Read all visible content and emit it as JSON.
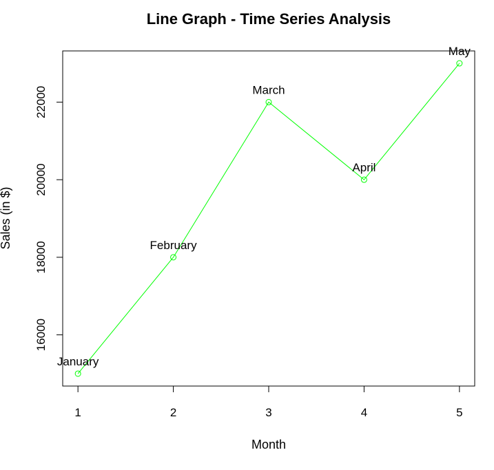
{
  "chart_data": {
    "type": "line",
    "title": "Line Graph - Time Series Analysis",
    "xlabel": "Month",
    "ylabel": "Sales (in $)",
    "x": [
      1,
      2,
      3,
      4,
      5
    ],
    "xlim": [
      0.84,
      5.16
    ],
    "ylim": [
      14680,
      23320
    ],
    "xticks": [
      "1",
      "2",
      "3",
      "4",
      "5"
    ],
    "yticks": [
      "16000",
      "18000",
      "20000",
      "22000"
    ],
    "yticks_values": [
      16000,
      18000,
      20000,
      22000
    ],
    "grid": false,
    "legend": "none",
    "series": [
      {
        "values": [
          15000,
          18000,
          22000,
          20000,
          23000
        ],
        "color": "#00ff00",
        "marker": "open-circle"
      }
    ],
    "point_labels": [
      "January",
      "February",
      "March",
      "April",
      "May"
    ]
  }
}
